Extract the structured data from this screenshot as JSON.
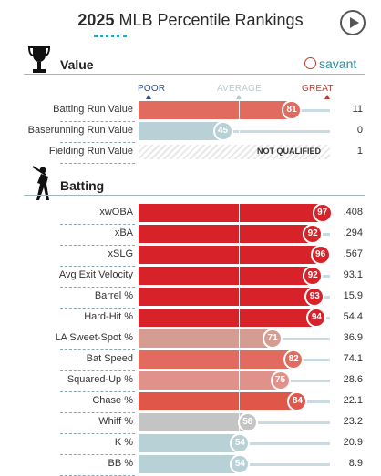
{
  "header": {
    "year": "2025",
    "title": "MLB Percentile Rankings"
  },
  "scale": {
    "poor": "POOR",
    "average": "AVERAGE",
    "great": "GREAT"
  },
  "brand": "savant",
  "value_section": {
    "title": "Value",
    "rows": [
      {
        "label": "Batting Run Value",
        "pct": 81,
        "value": "11",
        "color": "#e06b5e"
      },
      {
        "label": "Baserunning Run Value",
        "pct": 45,
        "value": "0",
        "color": "#b8d1d6"
      },
      {
        "label": "Fielding Run Value",
        "pct": null,
        "value": "1",
        "note": "NOT QUALIFIED"
      }
    ]
  },
  "batting_section": {
    "title": "Batting",
    "rows": [
      {
        "label": "xwOBA",
        "pct": 97,
        "value": ".408",
        "color": "#d8222a"
      },
      {
        "label": "xBA",
        "pct": 92,
        "value": ".294",
        "color": "#d8222a"
      },
      {
        "label": "xSLG",
        "pct": 96,
        "value": ".567",
        "color": "#d8222a"
      },
      {
        "label": "Avg Exit Velocity",
        "pct": 92,
        "value": "93.1",
        "color": "#d8222a"
      },
      {
        "label": "Barrel %",
        "pct": 93,
        "value": "15.9",
        "color": "#d8222a"
      },
      {
        "label": "Hard-Hit %",
        "pct": 94,
        "value": "54.4",
        "color": "#d8222a"
      },
      {
        "label": "LA Sweet-Spot %",
        "pct": 71,
        "value": "36.9",
        "color": "#d59c92"
      },
      {
        "label": "Bat Speed",
        "pct": 82,
        "value": "74.1",
        "color": "#e06b5e"
      },
      {
        "label": "Squared-Up %",
        "pct": 75,
        "value": "28.6",
        "color": "#e0928a"
      },
      {
        "label": "Chase %",
        "pct": 84,
        "value": "22.1",
        "color": "#e0574a"
      },
      {
        "label": "Whiff %",
        "pct": 58,
        "value": "23.2",
        "color": "#c4c4c4"
      },
      {
        "label": "K %",
        "pct": 54,
        "value": "20.9",
        "color": "#b8d1d6"
      },
      {
        "label": "BB %",
        "pct": 54,
        "value": "8.9",
        "color": "#b8d1d6"
      }
    ]
  }
}
